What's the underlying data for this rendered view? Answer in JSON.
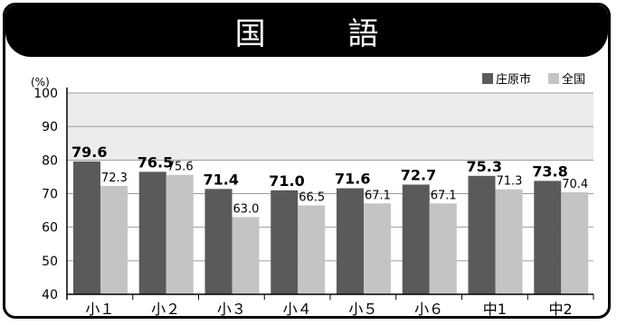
{
  "chart_data": {
    "type": "bar",
    "title": "国 語",
    "unit_label": "(%)",
    "categories": [
      "小１",
      "小２",
      "小３",
      "小４",
      "小５",
      "小６",
      "中1",
      "中2"
    ],
    "series": [
      {
        "name": "庄原市",
        "values": [
          79.6,
          76.5,
          71.4,
          71.0,
          71.6,
          72.7,
          75.3,
          73.8
        ],
        "labels": [
          "79.6",
          "76.5",
          "71.4",
          "71.0",
          "71.6",
          "72.7",
          "75.3",
          "73.8"
        ],
        "color": "#5a5a5a"
      },
      {
        "name": "全国",
        "values": [
          72.3,
          75.6,
          63.0,
          66.5,
          67.1,
          67.1,
          71.3,
          70.4
        ],
        "labels": [
          "72.3",
          "75.6",
          "63.0",
          "66.5",
          "67.1",
          "67.1",
          "71.3",
          "70.4"
        ],
        "color": "#c4c4c4"
      }
    ],
    "ylim": [
      40,
      100
    ],
    "yticks": [
      40,
      50,
      60,
      70,
      80,
      90,
      100
    ],
    "grid": true,
    "legend_position": "top-right"
  }
}
